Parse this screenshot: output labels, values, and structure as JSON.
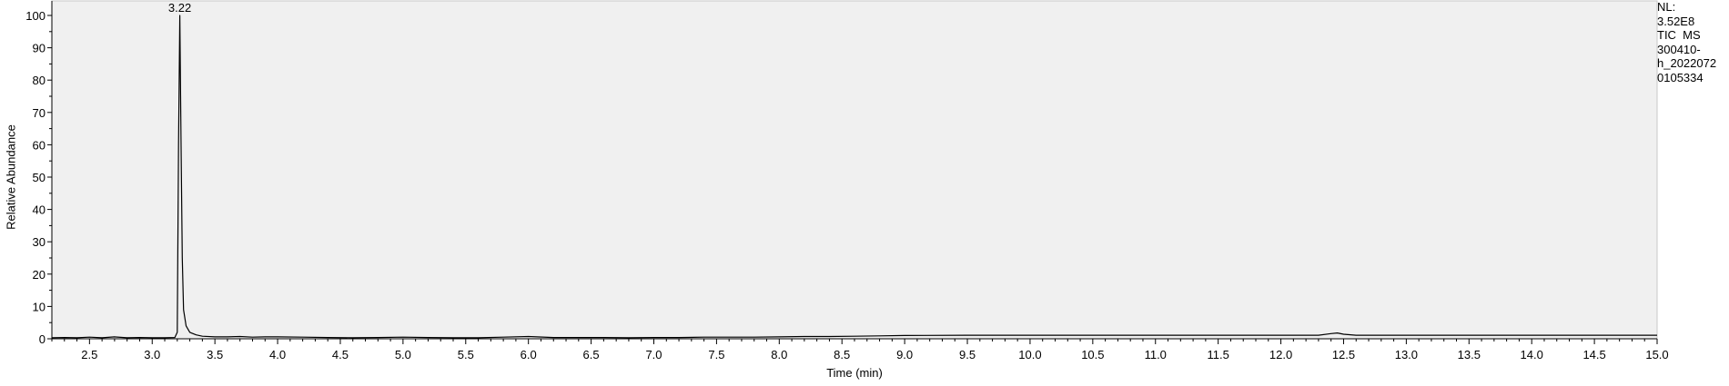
{
  "chart_data": {
    "type": "line",
    "title": "",
    "xlabel": "Time (min)",
    "ylabel": "Relative Abundance",
    "xlim": [
      2.2,
      15.0
    ],
    "ylim": [
      0,
      100
    ],
    "x_ticks": [
      2.5,
      3.0,
      3.5,
      4.0,
      4.5,
      5.0,
      5.5,
      6.0,
      6.5,
      7.0,
      7.5,
      8.0,
      8.5,
      9.0,
      9.5,
      10.0,
      10.5,
      11.0,
      11.5,
      12.0,
      12.5,
      13.0,
      13.5,
      14.0,
      14.5,
      15.0
    ],
    "x_tick_labels": [
      "2.5",
      "3.0",
      "3.5",
      "4.0",
      "4.5",
      "5.0",
      "5.5",
      "6.0",
      "6.5",
      "7.0",
      "7.5",
      "8.0",
      "8.5",
      "9.0",
      "9.5",
      "10.0",
      "10.5",
      "11.0",
      "11.5",
      "12.0",
      "12.5",
      "13.0",
      "13.5",
      "14.0",
      "14.5",
      "15.0"
    ],
    "y_ticks": [
      0,
      10,
      20,
      30,
      40,
      50,
      60,
      70,
      80,
      90,
      100
    ],
    "y_tick_labels": [
      "0",
      "10",
      "20",
      "30",
      "40",
      "50",
      "60",
      "70",
      "80",
      "90",
      "100"
    ],
    "peak_labels": [
      {
        "x": 3.22,
        "y": 100,
        "text": "3.22"
      }
    ],
    "series": [
      {
        "x": [
          2.2,
          2.3,
          2.4,
          2.5,
          2.6,
          2.7,
          2.8,
          2.9,
          3.0,
          3.1,
          3.18,
          3.2,
          3.21,
          3.22,
          3.23,
          3.24,
          3.25,
          3.27,
          3.3,
          3.35,
          3.4,
          3.5,
          3.6,
          3.7,
          3.8,
          3.9,
          4.0,
          4.2,
          4.4,
          4.6,
          4.8,
          5.0,
          5.2,
          5.4,
          5.6,
          5.8,
          6.0,
          6.2,
          6.4,
          6.6,
          6.8,
          7.0,
          7.2,
          7.4,
          7.6,
          7.8,
          8.0,
          8.2,
          8.4,
          8.6,
          8.8,
          9.0,
          9.5,
          10.0,
          10.5,
          11.0,
          11.5,
          12.0,
          12.3,
          12.4,
          12.45,
          12.5,
          12.6,
          13.0,
          13.5,
          14.0,
          14.5,
          15.0
        ],
        "y": [
          0.3,
          0.4,
          0.3,
          0.5,
          0.3,
          0.6,
          0.3,
          0.4,
          0.3,
          0.3,
          0.4,
          2.0,
          60.0,
          100,
          62.0,
          25.0,
          9.0,
          4.0,
          2.0,
          1.2,
          0.8,
          0.6,
          0.6,
          0.7,
          0.5,
          0.6,
          0.6,
          0.5,
          0.4,
          0.3,
          0.4,
          0.5,
          0.4,
          0.3,
          0.3,
          0.5,
          0.7,
          0.4,
          0.4,
          0.4,
          0.3,
          0.4,
          0.4,
          0.5,
          0.5,
          0.5,
          0.6,
          0.7,
          0.7,
          0.8,
          0.9,
          1.0,
          1.1,
          1.1,
          1.1,
          1.1,
          1.1,
          1.1,
          1.1,
          1.6,
          1.8,
          1.4,
          1.1,
          1.1,
          1.1,
          1.1,
          1.1,
          1.1
        ]
      }
    ]
  },
  "info_box": {
    "line1": "NL:",
    "line2": "3.52E8",
    "line3": "TIC  MS",
    "line4": "300410-",
    "line5": "h_2022072",
    "line6": "0105334"
  },
  "colors": {
    "plot_background": "#f0f0f0",
    "trace": "#000000",
    "page_background": "#ffffff"
  }
}
